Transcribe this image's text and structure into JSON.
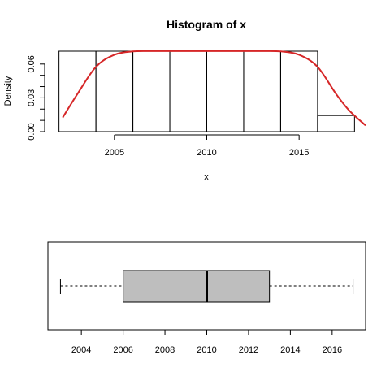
{
  "chart_data": [
    {
      "type": "histogram",
      "title": "Histogram of x",
      "xlabel": "x",
      "ylabel": "Density",
      "bins": [
        {
          "x0": 2002,
          "x1": 2004,
          "density": 0.0714
        },
        {
          "x0": 2004,
          "x1": 2006,
          "density": 0.0714
        },
        {
          "x0": 2006,
          "x1": 2008,
          "density": 0.0714
        },
        {
          "x0": 2008,
          "x1": 2010,
          "density": 0.0714
        },
        {
          "x0": 2010,
          "x1": 2012,
          "density": 0.0714
        },
        {
          "x0": 2012,
          "x1": 2014,
          "density": 0.0714
        },
        {
          "x0": 2014,
          "x1": 2016,
          "density": 0.0714
        },
        {
          "x0": 2016,
          "x1": 2018,
          "density": 0.0143
        }
      ],
      "xlim": [
        2001.4,
        2018.6
      ],
      "ylim": [
        0,
        0.0714
      ],
      "xticks": [
        2005,
        2010,
        2015
      ],
      "yticks": [
        0.0,
        0.03,
        0.06
      ],
      "yminorticks": [
        0.01,
        0.02,
        0.04,
        0.05
      ],
      "ytick_labels": [
        "0.00",
        "0.03",
        "0.06"
      ],
      "density_curve": {
        "color": "#d62728",
        "x": [
          2002.2,
          2003,
          2004,
          2005,
          2006,
          2007,
          2008,
          2009,
          2010,
          2011,
          2012,
          2013,
          2014,
          2015,
          2016,
          2017,
          2017.7,
          2018.6
        ],
        "y": [
          0.0125,
          0.0335,
          0.0575,
          0.0682,
          0.0712,
          0.0715,
          0.0715,
          0.0715,
          0.0715,
          0.0715,
          0.0715,
          0.0715,
          0.0712,
          0.0682,
          0.0575,
          0.0335,
          0.019,
          0.0055
        ]
      }
    },
    {
      "type": "boxplot",
      "orientation": "horizontal",
      "box_color": "#bebebe",
      "min": 2003,
      "q1": 2006,
      "median": 2010,
      "q3": 2013,
      "max": 2017,
      "xlim": [
        2002.4,
        2017.6
      ],
      "xticks": [
        2004,
        2006,
        2008,
        2010,
        2012,
        2014,
        2016
      ]
    }
  ]
}
